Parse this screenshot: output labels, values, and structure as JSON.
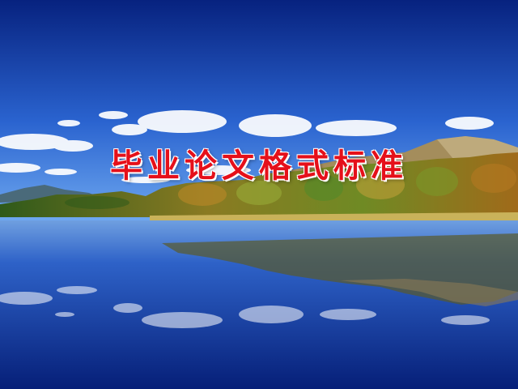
{
  "slide": {
    "title": "毕业论文格式标准"
  },
  "colors": {
    "title": "#e5101a",
    "sky_top": "#0a2a8c",
    "sky_bottom": "#4f8ee8",
    "water": "#0b2f92",
    "forest": "#5b7a1e",
    "reeds": "#c9b25a"
  }
}
